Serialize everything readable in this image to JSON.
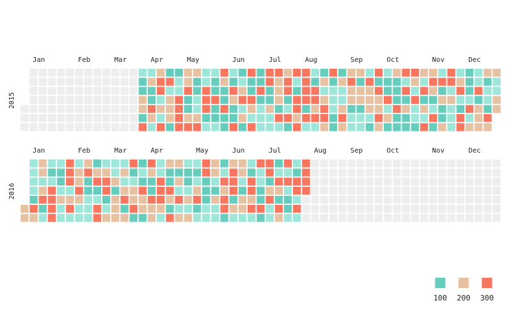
{
  "chart_data": {
    "type": "heatmap",
    "subtype": "calendar",
    "week_start": "Sunday",
    "colors": {
      "empty": "#eeeeee",
      "bins": [
        "#66cdbd",
        "#9ee6d9",
        "#e6c2a2",
        "#f6765f"
      ]
    },
    "legend": {
      "position": "bottom-right",
      "items": [
        {
          "label": "100",
          "color": "#66cdbd"
        },
        {
          "label": "200",
          "color": "#e6c2a2"
        },
        {
          "label": "300",
          "color": "#f6765f"
        }
      ]
    },
    "panels": [
      {
        "year": "2015",
        "year_label": "2015",
        "months": [
          "Jan",
          "Feb",
          "Mar",
          "Apr",
          "May",
          "Jun",
          "Jul",
          "Aug",
          "Sep",
          "Oct",
          "Nov",
          "Dec"
        ],
        "data_start_week": 13,
        "data_end_week": 52,
        "weeks": [
          "1002203",
          "1200321",
          "2331213",
          "0312220",
          "0113333",
          "2230023",
          "2001123",
          "1133301",
          "1003001",
          "3200300",
          "1032003",
          "0123120",
          "3003213",
          "0030111",
          "3300211",
          "3222031",
          "2330130",
          "3103323",
          "3333031",
          "1033231",
          "0212332",
          "3011100",
          "0211232",
          "2322011",
          "2022011",
          "1322210",
          "3032232",
          "1003120",
          "2000300",
          "3130200",
          "3213110",
          "2130213",
          "2320130",
          "1302002",
          "3312111",
          "1231033",
          "0001312",
          "1130222",
          "2011032",
          "2112201"
        ]
      },
      {
        "year": "2016",
        "year_label": "2016",
        "months": [
          "Jan",
          "Feb",
          "Mar",
          "Apr",
          "May",
          "Jun",
          "Jul",
          "Aug",
          "Sep",
          "Oct",
          "Nov",
          "Dec"
        ],
        "data_start_week": 0,
        "data_end_week": 31,
        "weeks": [
          "-----22",
          "1111032",
          "2212301",
          "1013333",
          "1001211",
          "3331231",
          "1223211",
          "2300111",
          "0230133",
          "1233012",
          "1120222",
          "1212302",
          "3012230",
          "0103220",
          "3200322",
          "1133321",
          "2003203",
          "2021312",
          "1001212",
          "1012301",
          "3300011",
          "2210211",
          "0132330",
          "2333021",
          "2210221",
          "1033231",
          "3110030",
          "3302311",
          "0132032",
          "3131001",
          "1033131",
          "3333---"
        ]
      }
    ]
  }
}
